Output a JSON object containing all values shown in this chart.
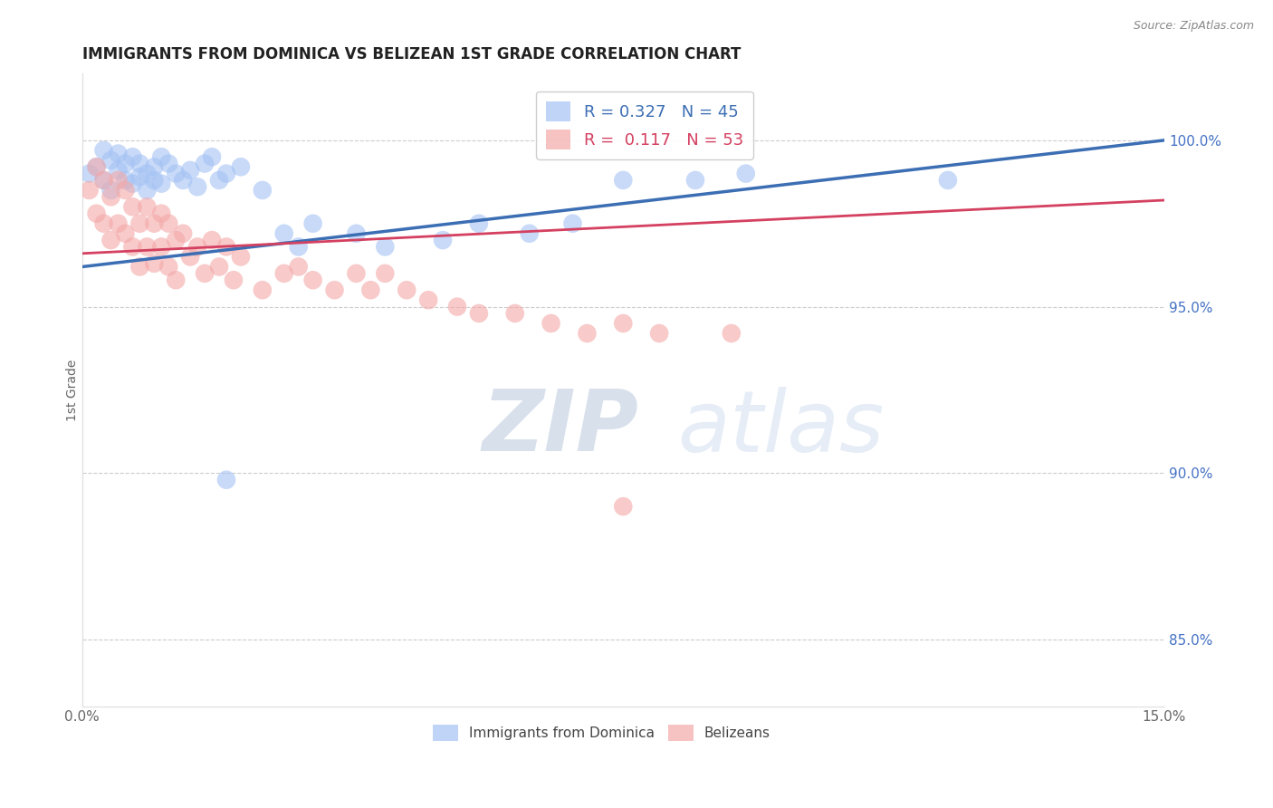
{
  "title": "IMMIGRANTS FROM DOMINICA VS BELIZEAN 1ST GRADE CORRELATION CHART",
  "source_text": "Source: ZipAtlas.com",
  "ylabel": "1st Grade",
  "xlim": [
    0.0,
    0.15
  ],
  "ylim": [
    0.83,
    1.02
  ],
  "xticks": [
    0.0,
    0.03,
    0.06,
    0.09,
    0.12,
    0.15
  ],
  "xticklabels": [
    "0.0%",
    "",
    "",
    "",
    "",
    "15.0%"
  ],
  "yticks_right": [
    0.85,
    0.9,
    0.95,
    1.0
  ],
  "yticklabels_right": [
    "85.0%",
    "90.0%",
    "95.0%",
    "100.0%"
  ],
  "blue_color": "#a4c2f4",
  "pink_color": "#f4a8a8",
  "blue_line_color": "#3c6eb4",
  "pink_line_color": "#d44060",
  "legend_blue_R": "0.327",
  "legend_blue_N": "45",
  "legend_pink_R": "0.117",
  "legend_pink_N": "53",
  "legend_blue_label": "Immigrants from Dominica",
  "legend_pink_label": "Belizeans",
  "blue_scatter_x": [
    0.001,
    0.002,
    0.003,
    0.003,
    0.004,
    0.004,
    0.005,
    0.005,
    0.006,
    0.006,
    0.007,
    0.007,
    0.008,
    0.008,
    0.009,
    0.009,
    0.01,
    0.01,
    0.011,
    0.011,
    0.012,
    0.013,
    0.014,
    0.015,
    0.016,
    0.017,
    0.018,
    0.019,
    0.02,
    0.022,
    0.025,
    0.028,
    0.03,
    0.032,
    0.038,
    0.042,
    0.05,
    0.055,
    0.062,
    0.068,
    0.075,
    0.085,
    0.092,
    0.02,
    0.12
  ],
  "blue_scatter_y": [
    0.99,
    0.992,
    0.988,
    0.997,
    0.994,
    0.985,
    0.991,
    0.996,
    0.988,
    0.993,
    0.987,
    0.995,
    0.989,
    0.993,
    0.99,
    0.985,
    0.988,
    0.992,
    0.987,
    0.995,
    0.993,
    0.99,
    0.988,
    0.991,
    0.986,
    0.993,
    0.995,
    0.988,
    0.99,
    0.992,
    0.985,
    0.972,
    0.968,
    0.975,
    0.972,
    0.968,
    0.97,
    0.975,
    0.972,
    0.975,
    0.988,
    0.988,
    0.99,
    0.898,
    0.988
  ],
  "pink_scatter_x": [
    0.001,
    0.002,
    0.002,
    0.003,
    0.003,
    0.004,
    0.004,
    0.005,
    0.005,
    0.006,
    0.006,
    0.007,
    0.007,
    0.008,
    0.008,
    0.009,
    0.009,
    0.01,
    0.01,
    0.011,
    0.011,
    0.012,
    0.012,
    0.013,
    0.013,
    0.014,
    0.015,
    0.016,
    0.017,
    0.018,
    0.019,
    0.02,
    0.021,
    0.022,
    0.025,
    0.028,
    0.03,
    0.032,
    0.035,
    0.038,
    0.04,
    0.042,
    0.045,
    0.048,
    0.052,
    0.055,
    0.06,
    0.065,
    0.07,
    0.075,
    0.08,
    0.09,
    0.075
  ],
  "pink_scatter_y": [
    0.985,
    0.992,
    0.978,
    0.988,
    0.975,
    0.983,
    0.97,
    0.988,
    0.975,
    0.985,
    0.972,
    0.98,
    0.968,
    0.975,
    0.962,
    0.98,
    0.968,
    0.975,
    0.963,
    0.978,
    0.968,
    0.975,
    0.962,
    0.97,
    0.958,
    0.972,
    0.965,
    0.968,
    0.96,
    0.97,
    0.962,
    0.968,
    0.958,
    0.965,
    0.955,
    0.96,
    0.962,
    0.958,
    0.955,
    0.96,
    0.955,
    0.96,
    0.955,
    0.952,
    0.95,
    0.948,
    0.948,
    0.945,
    0.942,
    0.945,
    0.942,
    0.942,
    0.89
  ],
  "blue_trend_x": [
    0.0,
    0.15
  ],
  "blue_trend_y": [
    0.962,
    1.0
  ],
  "pink_trend_x": [
    0.0,
    0.15
  ],
  "pink_trend_y": [
    0.966,
    0.982
  ],
  "grid_color": "#cccccc",
  "title_fontsize": 12,
  "right_axis_label_color": "#4472c4"
}
